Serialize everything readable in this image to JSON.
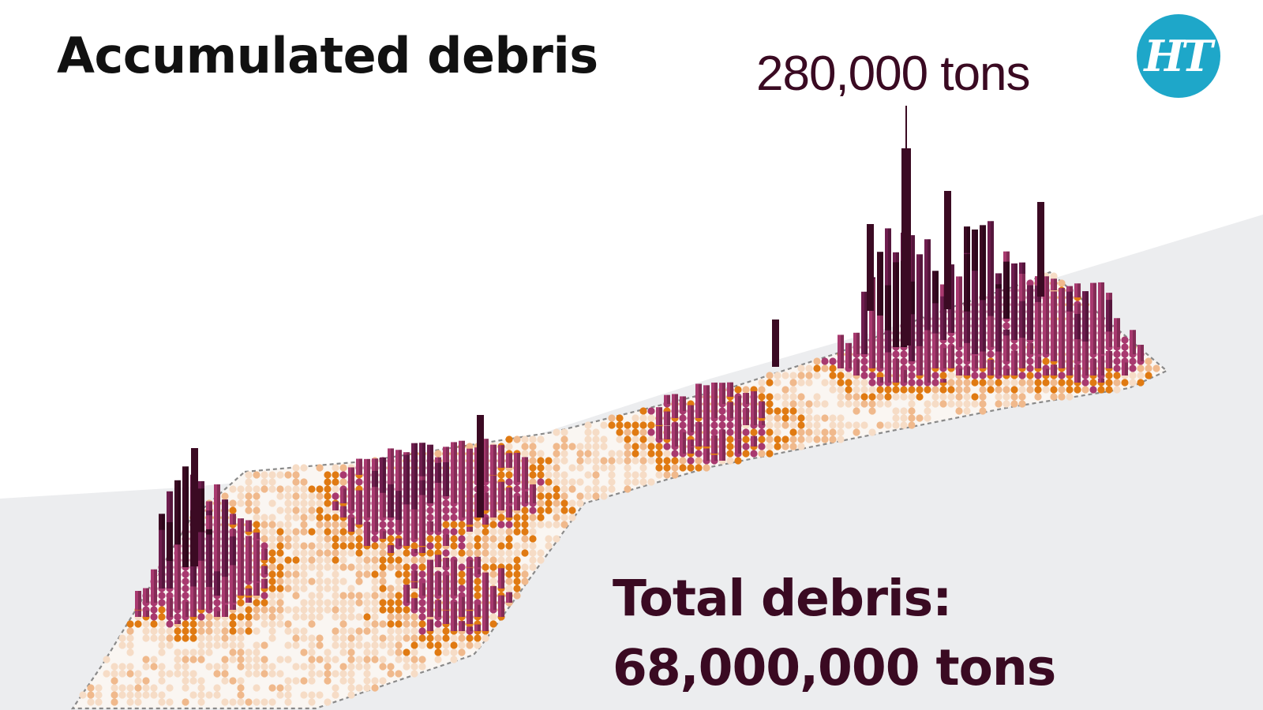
{
  "title": "Accumulated debris",
  "peak_label": "280,000 tons",
  "total": {
    "label": "Total debris:",
    "value": "68,000,000 tons"
  },
  "logo": {
    "text": "HT"
  },
  "colors": {
    "background_land": "#ecedef",
    "outline": "#8a8a8a",
    "title": "#111111",
    "total_text": "#3a0a22",
    "logo_bg": "#1ea7c9",
    "scale": [
      "#f6dcc6",
      "#f0b98c",
      "#e07a12",
      "#a8396f",
      "#6e1d4e",
      "#3b0a23"
    ]
  },
  "map": {
    "peak_value_tons": 280000,
    "total_value_tons": 68000000
  }
}
